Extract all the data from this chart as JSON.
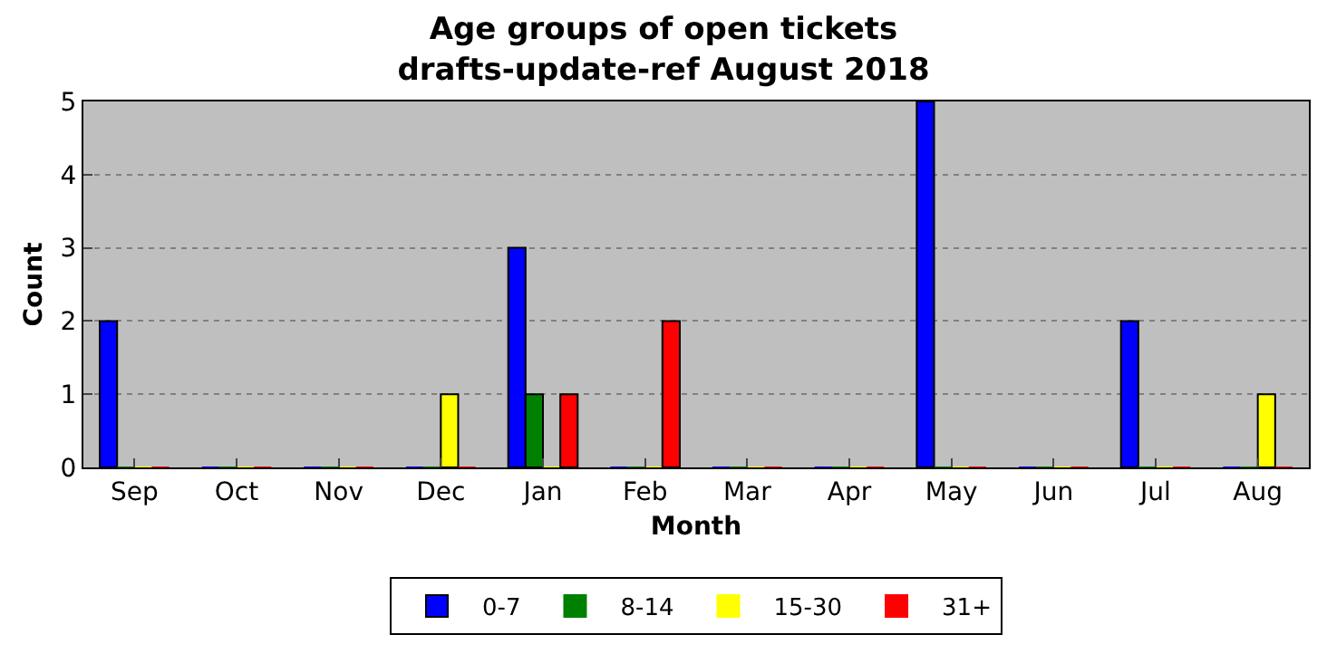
{
  "chart_data": {
    "type": "bar",
    "title": "Age groups of open tickets\ndrafts-update-ref August 2018",
    "xlabel": "Month",
    "ylabel": "Count",
    "categories": [
      "Sep",
      "Oct",
      "Nov",
      "Dec",
      "Jan",
      "Feb",
      "Mar",
      "Apr",
      "May",
      "Jun",
      "Jul",
      "Aug"
    ],
    "series": [
      {
        "name": "0-7",
        "color": "#0000ff",
        "values": [
          2,
          0,
          0,
          0,
          3,
          0,
          0,
          0,
          5,
          0,
          2,
          0
        ]
      },
      {
        "name": "8-14",
        "color": "#008000",
        "values": [
          0,
          0,
          0,
          0,
          1,
          0,
          0,
          0,
          0,
          0,
          0,
          0
        ]
      },
      {
        "name": "15-30",
        "color": "#ffff00",
        "values": [
          0,
          0,
          0,
          1,
          0,
          0,
          0,
          0,
          0,
          0,
          0,
          1
        ]
      },
      {
        "name": "31+",
        "color": "#ff0000",
        "values": [
          0,
          0,
          0,
          0,
          1,
          2,
          0,
          0,
          0,
          0,
          0,
          0
        ]
      }
    ],
    "ylim": [
      0,
      5
    ],
    "yticks": [
      0,
      1,
      2,
      3,
      4,
      5
    ],
    "grid": "y",
    "legend": "bottom"
  }
}
